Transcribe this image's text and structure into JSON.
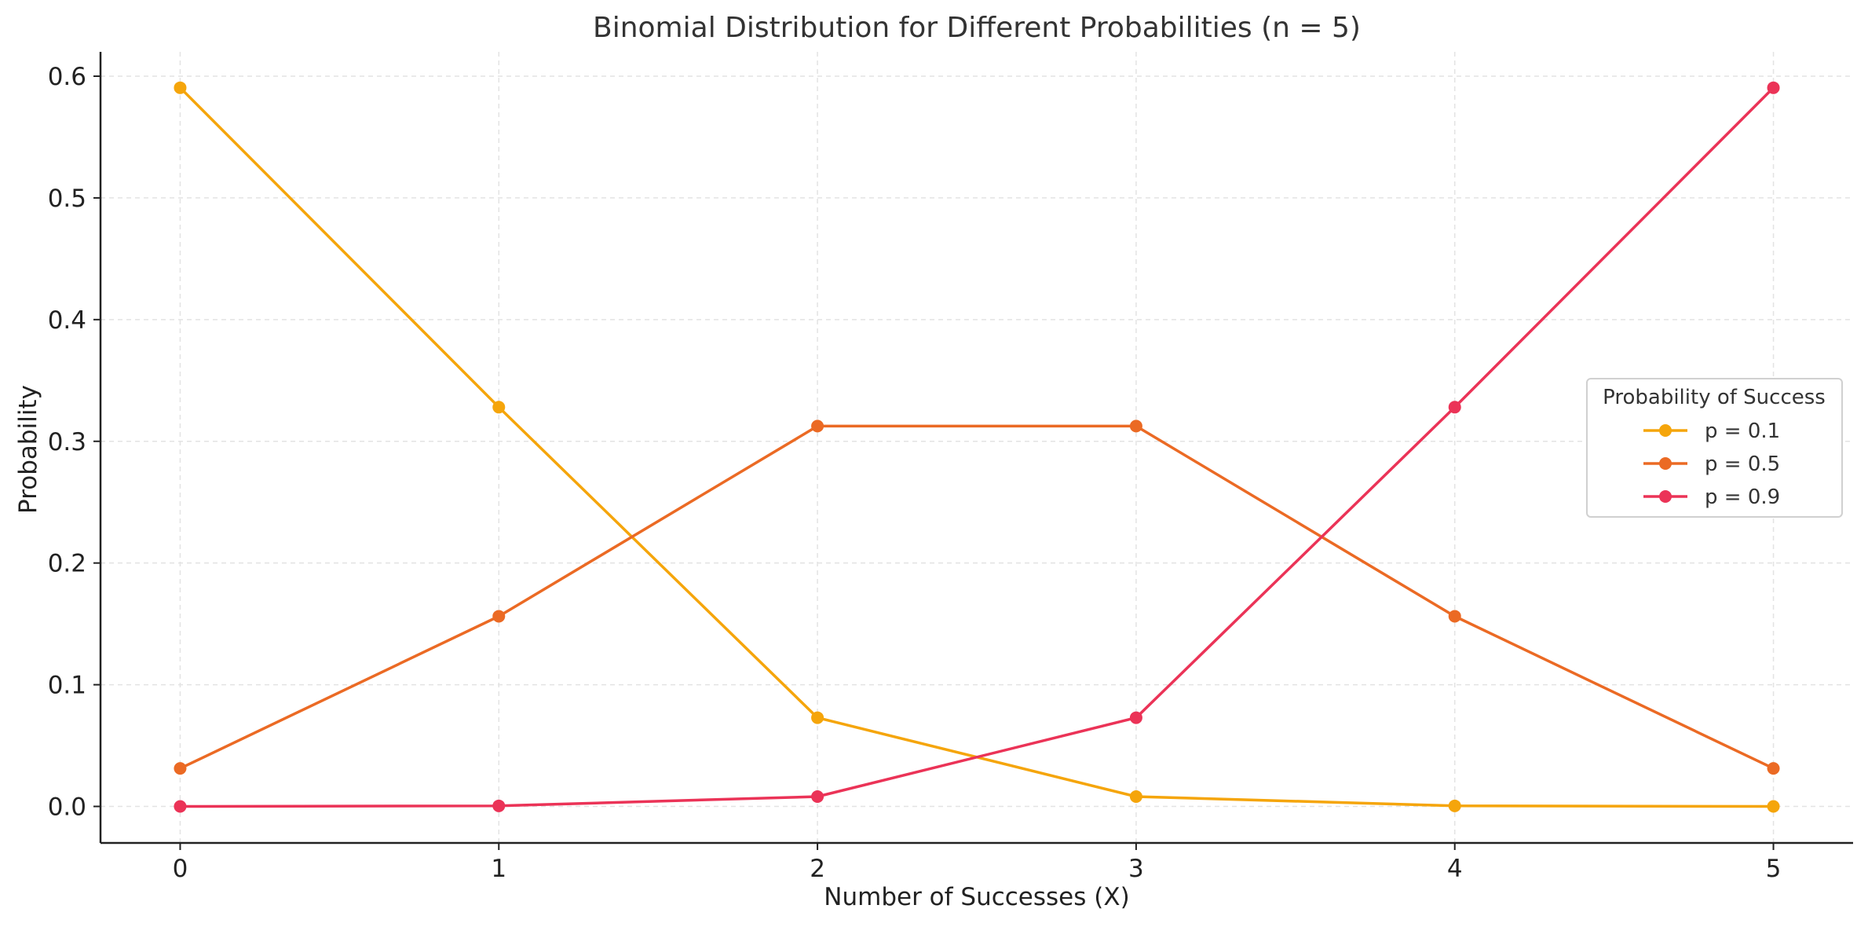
{
  "chart_data": {
    "type": "line",
    "title": "Binomial Distribution for Different Probabilities (n = 5)",
    "xlabel": "Number of Successes (X)",
    "ylabel": "Probability",
    "x": [
      0,
      1,
      2,
      3,
      4,
      5
    ],
    "xlim": [
      -0.25,
      5.25
    ],
    "ylim": [
      -0.03,
      0.62
    ],
    "xticks": [
      "0",
      "1",
      "2",
      "3",
      "4",
      "5"
    ],
    "yticks": [
      "0.0",
      "0.1",
      "0.2",
      "0.3",
      "0.4",
      "0.5",
      "0.6"
    ],
    "grid": true,
    "legend": {
      "title": "Probability of Success",
      "position": "center-right"
    },
    "series": [
      {
        "name": "p = 0.1",
        "color": "#F5A50B",
        "values": [
          0.59049,
          0.32805,
          0.0729,
          0.0081,
          0.00045,
          1e-05
        ]
      },
      {
        "name": "p = 0.5",
        "color": "#EB6A24",
        "values": [
          0.03125,
          0.15625,
          0.3125,
          0.3125,
          0.15625,
          0.03125
        ]
      },
      {
        "name": "p = 0.9",
        "color": "#EB3357",
        "values": [
          1e-05,
          0.00045,
          0.0081,
          0.0729,
          0.32805,
          0.59049
        ]
      }
    ]
  }
}
